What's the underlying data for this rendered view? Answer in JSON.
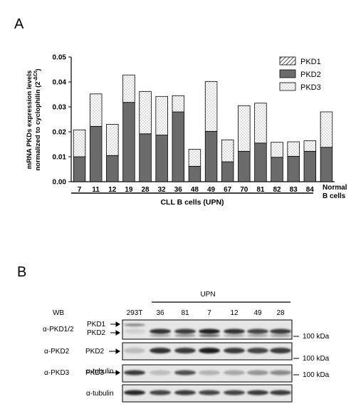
{
  "panel_a": {
    "label": "A",
    "ylabel_line1": "mRNA PKDs expression levels",
    "ylabel_line2": "normalized to cyclophilin (2",
    "ylabel_sup": "-ΔCt",
    "ylabel_close": ")",
    "group_label": "CLL B cells (UPN)",
    "normal_label_1": "Normal",
    "normal_label_2": "B cells",
    "legend": [
      "PKD1",
      "PKD2",
      "PKD3"
    ]
  },
  "chart_data": {
    "type": "bar",
    "stacked": true,
    "categories": [
      "7",
      "11",
      "12",
      "19",
      "28",
      "32",
      "36",
      "48",
      "49",
      "67",
      "70",
      "81",
      "82",
      "83",
      "84",
      "Normal B cells"
    ],
    "tick_labels": [
      "0.00",
      "0.01",
      "0.02",
      "0.03",
      "0.04",
      "0.05"
    ],
    "ylim": [
      0,
      0.05
    ],
    "legend_position": "top-right",
    "series": [
      {
        "name": "PKD1",
        "values": [
          0,
          0,
          0,
          0,
          0,
          0,
          0,
          0,
          0,
          0,
          0,
          0,
          0,
          0,
          0,
          0
        ]
      },
      {
        "name": "PKD2",
        "values": [
          0.01,
          0.0222,
          0.0105,
          0.0318,
          0.0192,
          0.0187,
          0.028,
          0.0062,
          0.0202,
          0.008,
          0.0122,
          0.0155,
          0.0098,
          0.0102,
          0.0122,
          0.0138
        ]
      },
      {
        "name": "PKD3",
        "values": [
          0.0108,
          0.013,
          0.0125,
          0.011,
          0.017,
          0.0155,
          0.0065,
          0.0068,
          0.02,
          0.0088,
          0.0183,
          0.016,
          0.006,
          0.0058,
          0.0042,
          0.0142
        ]
      }
    ]
  },
  "panel_b": {
    "label": "B",
    "wb_label": "WB",
    "upn_label": "UPN",
    "lane_labels": [
      "293T",
      "36",
      "81",
      "7",
      "12",
      "49",
      "28"
    ],
    "blots": [
      {
        "antibody": "α-PKD1/2",
        "band_labels": [
          "PKD1",
          "PKD2"
        ],
        "marker": "100 kDa"
      },
      {
        "antibody": "α-PKD2",
        "band_labels": [
          "PKD2"
        ],
        "marker": "100 kDa"
      },
      {
        "antibody": "α-tubulin",
        "band_labels": [],
        "marker": ""
      },
      {
        "antibody": "α-PKD3",
        "band_labels": [
          "PKD3"
        ],
        "marker": "100 kDa"
      },
      {
        "antibody": "α-tubulin",
        "band_labels": [],
        "marker": ""
      }
    ]
  },
  "colors": {
    "pkd2_fill": "#6b6b6b",
    "pkd3_dots": "#555555",
    "blot_bg": "#e6e6e6",
    "band": "#1a1a1a"
  }
}
